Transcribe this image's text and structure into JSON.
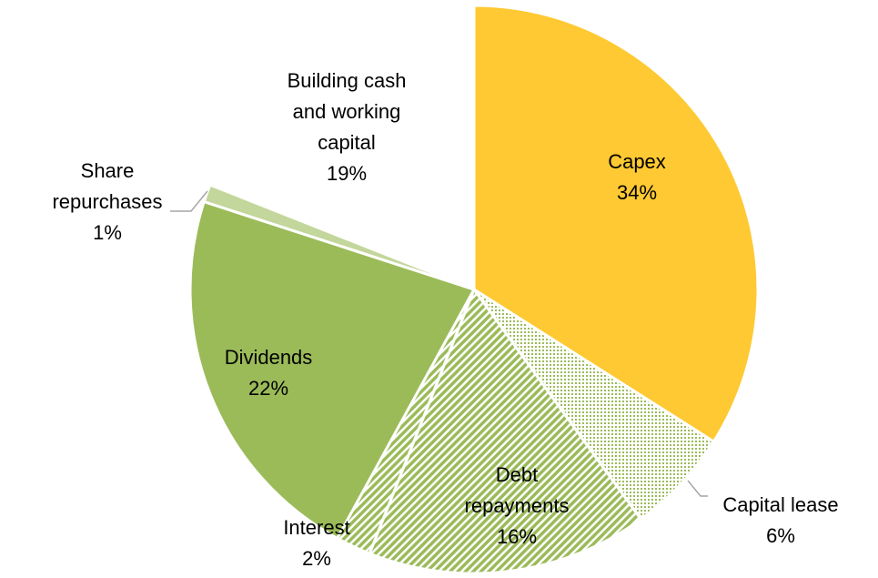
{
  "chart_data": {
    "type": "pie",
    "categories": [
      "Capex",
      "Capital lease",
      "Debt repayments",
      "Interest",
      "Dividends",
      "Share repurchases",
      "Building cash and working capital"
    ],
    "values": [
      34,
      6,
      16,
      2,
      22,
      1,
      19
    ],
    "value_labels": [
      "34%",
      "6%",
      "16%",
      "2%",
      "22%",
      "1%",
      "19%"
    ],
    "colors": [
      "#fec932",
      "#9bbb59",
      "#9bbb59",
      "#9bbb59",
      "#9bbb59",
      "#c3d69b",
      "none"
    ],
    "fills": [
      "solid",
      "dots",
      "stripes",
      "stripes",
      "solid",
      "solid",
      "none"
    ]
  }
}
